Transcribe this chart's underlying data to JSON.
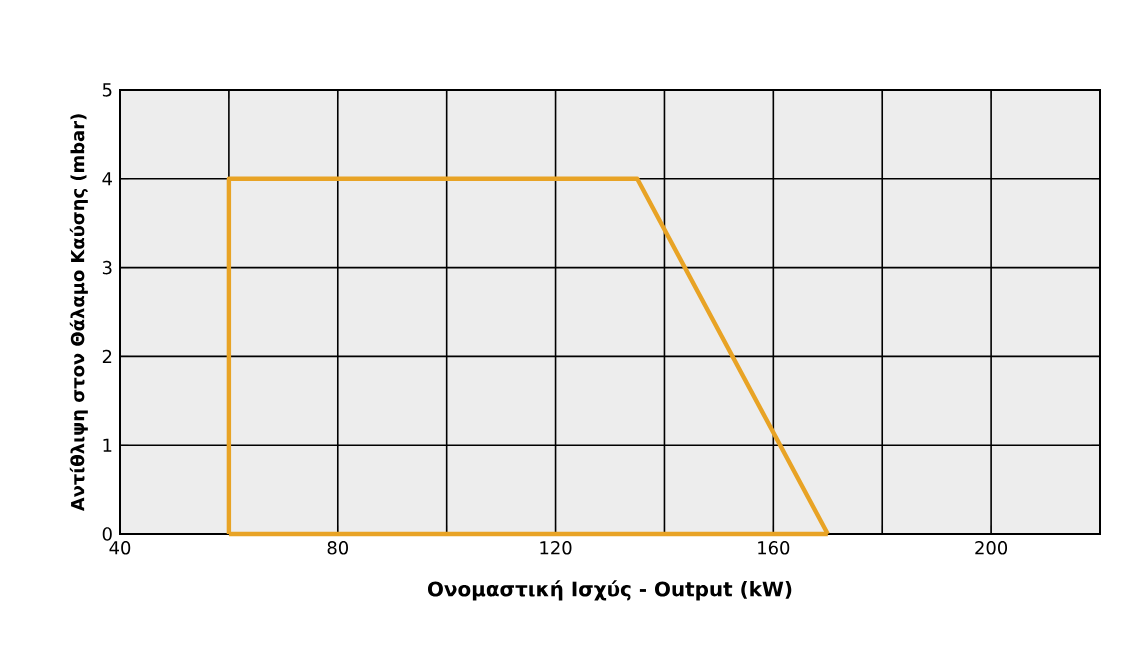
{
  "chart_data": {
    "type": "line",
    "xlabel": "Ονομαστική Ισχύς - Output (kW)",
    "ylabel": "Αντίθλιψη στον Θάλαμο Καύσης (mbar)",
    "xlim": [
      40,
      220
    ],
    "ylim": [
      0,
      5
    ],
    "xticks": [
      40,
      {
        "value": 60,
        "label": null
      },
      80,
      {
        "value": 100,
        "label": null
      },
      120,
      {
        "value": 140,
        "label": null
      },
      160,
      {
        "value": 180,
        "label": null
      },
      200,
      {
        "value": 220,
        "label": null
      }
    ],
    "yticks": [
      0,
      1,
      2,
      3,
      4,
      5
    ],
    "grid": true,
    "marker": "none",
    "line_style": "solid",
    "series": [
      {
        "color": "#e8a325",
        "x": [
          60,
          60,
          135,
          170
        ],
        "values": [
          0,
          4,
          4,
          0
        ]
      },
      {
        "color": "#e8a325",
        "x": [
          60,
          170
        ],
        "values": [
          0,
          0
        ]
      }
    ]
  }
}
